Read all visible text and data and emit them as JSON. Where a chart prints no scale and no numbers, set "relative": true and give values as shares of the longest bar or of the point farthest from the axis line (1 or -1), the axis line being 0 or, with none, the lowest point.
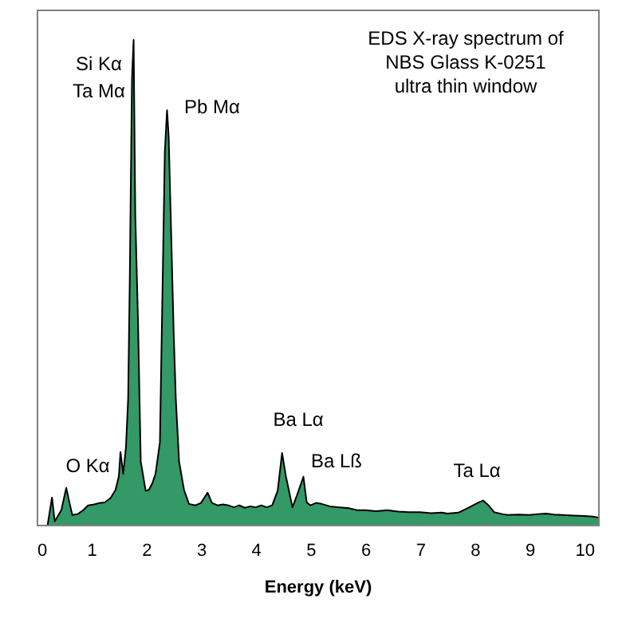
{
  "chart_data": {
    "type": "area",
    "title": "EDS X-ray spectrum of\nNBS Glass K-0251\nultra thin window",
    "xlabel": "Energy (keV)",
    "relative": true,
    "xlim": [
      0,
      10.25
    ],
    "xticks": [
      0,
      1,
      2,
      3,
      4,
      5,
      6,
      7,
      8,
      9,
      10
    ],
    "grid": false,
    "x": [
      0.2,
      0.28,
      0.33,
      0.45,
      0.54,
      0.6,
      0.65,
      0.75,
      0.85,
      0.94,
      1.05,
      1.15,
      1.24,
      1.35,
      1.44,
      1.5,
      1.53,
      1.58,
      1.63,
      1.67,
      1.7,
      1.74,
      1.77,
      1.8,
      1.85,
      1.9,
      1.99,
      2.05,
      2.11,
      2.17,
      2.25,
      2.31,
      2.34,
      2.38,
      2.41,
      2.46,
      2.5,
      2.54,
      2.6,
      2.69,
      2.78,
      2.9,
      3.0,
      3.12,
      3.2,
      3.3,
      3.4,
      3.5,
      3.6,
      3.7,
      3.8,
      3.9,
      4.0,
      4.1,
      4.2,
      4.3,
      4.4,
      4.48,
      4.55,
      4.67,
      4.75,
      4.87,
      4.93,
      5.0,
      5.1,
      5.2,
      5.35,
      5.5,
      5.7,
      5.85,
      6.0,
      6.2,
      6.4,
      6.6,
      6.8,
      7.0,
      7.2,
      7.4,
      7.5,
      7.7,
      7.9,
      8.05,
      8.15,
      8.25,
      8.35,
      8.5,
      8.6,
      8.8,
      9.0,
      9.15,
      9.3,
      9.45,
      9.6,
      9.8,
      10.0,
      10.15,
      10.25
    ],
    "series": [
      {
        "color": "#339966",
        "values": [
          0,
          0.056,
          0.007,
          0.03,
          0.076,
          0.045,
          0.02,
          0.022,
          0.03,
          0.04,
          0.042,
          0.045,
          0.046,
          0.055,
          0.072,
          0.1,
          0.15,
          0.105,
          0.16,
          0.26,
          0.51,
          0.92,
          1.0,
          0.64,
          0.42,
          0.13,
          0.07,
          0.072,
          0.085,
          0.105,
          0.17,
          0.57,
          0.77,
          0.855,
          0.8,
          0.58,
          0.4,
          0.26,
          0.13,
          0.072,
          0.043,
          0.04,
          0.045,
          0.066,
          0.045,
          0.04,
          0.042,
          0.04,
          0.036,
          0.04,
          0.035,
          0.038,
          0.036,
          0.04,
          0.036,
          0.04,
          0.07,
          0.148,
          0.1,
          0.036,
          0.06,
          0.099,
          0.046,
          0.04,
          0.045,
          0.043,
          0.038,
          0.036,
          0.034,
          0.03,
          0.03,
          0.028,
          0.03,
          0.027,
          0.026,
          0.026,
          0.024,
          0.025,
          0.023,
          0.025,
          0.036,
          0.045,
          0.05,
          0.04,
          0.026,
          0.022,
          0.02,
          0.021,
          0.02,
          0.022,
          0.023,
          0.021,
          0.02,
          0.019,
          0.018,
          0.017,
          0.015
        ]
      }
    ],
    "annotations": [
      "Si Kα",
      "Ta Mα",
      "Pb Mα",
      "O Kα",
      "Ba Lα",
      "Ba Lß",
      "Ta Lα"
    ]
  }
}
